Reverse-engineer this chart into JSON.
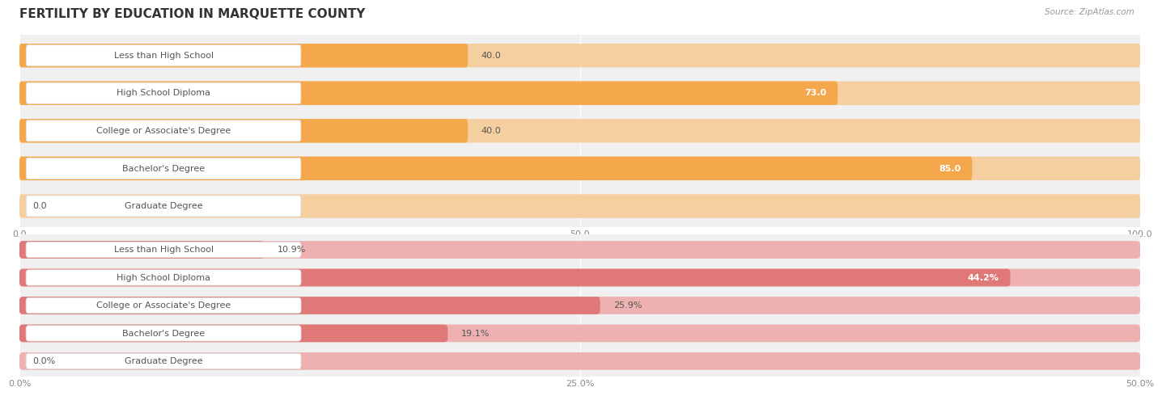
{
  "title": "FERTILITY BY EDUCATION IN MARQUETTE COUNTY",
  "source": "Source: ZipAtlas.com",
  "top_chart": {
    "categories": [
      "Less than High School",
      "High School Diploma",
      "College or Associate's Degree",
      "Bachelor's Degree",
      "Graduate Degree"
    ],
    "values": [
      40.0,
      73.0,
      40.0,
      85.0,
      0.0
    ],
    "bar_color": "#F5A84B",
    "bar_bg_color": "#F5CFA0",
    "label_suffix": "",
    "xlim": [
      0,
      100
    ],
    "xticks": [
      0.0,
      50.0,
      100.0
    ],
    "xtick_labels": [
      "0.0",
      "50.0",
      "100.0"
    ]
  },
  "bottom_chart": {
    "categories": [
      "Less than High School",
      "High School Diploma",
      "College or Associate's Degree",
      "Bachelor's Degree",
      "Graduate Degree"
    ],
    "values": [
      10.9,
      44.2,
      25.9,
      19.1,
      0.0
    ],
    "bar_color": "#E07878",
    "bar_bg_color": "#EEB0B0",
    "label_suffix": "%",
    "xlim": [
      0,
      50
    ],
    "xticks": [
      0.0,
      25.0,
      50.0
    ],
    "xtick_labels": [
      "0.0%",
      "25.0%",
      "50.0%"
    ]
  },
  "label_text_color": "#555555",
  "bar_height": 0.62,
  "fig_bg_color": "#FFFFFF",
  "axes_bg_color": "#F0F0F0",
  "title_fontsize": 11,
  "label_fontsize": 8,
  "value_fontsize": 8,
  "tick_fontsize": 8,
  "source_fontsize": 7.5
}
